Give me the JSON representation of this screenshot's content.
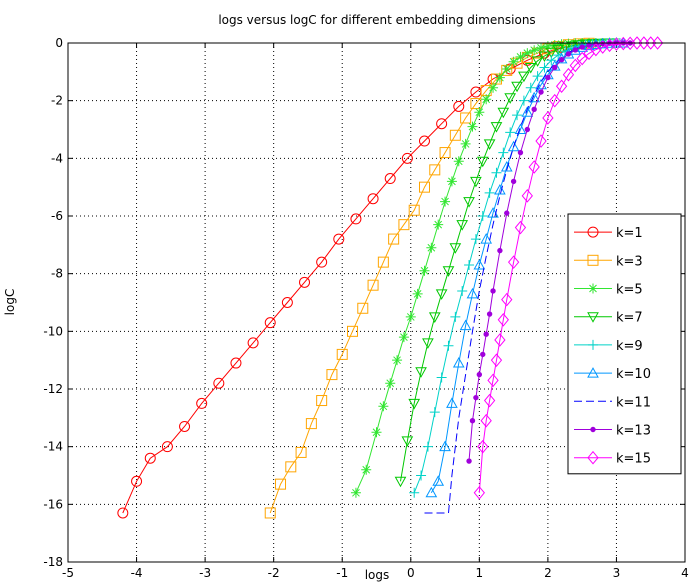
{
  "chart_data": {
    "type": "line",
    "title": "logs versus logC for different embedding dimensions",
    "xlabel": "logs",
    "ylabel": "logC",
    "xlim": [
      -5,
      4
    ],
    "ylim": [
      -18,
      0
    ],
    "xticks": [
      -5,
      -4,
      -3,
      -2,
      -1,
      0,
      1,
      2,
      3,
      4
    ],
    "yticks": [
      0,
      -2,
      -4,
      -6,
      -8,
      -10,
      -12,
      -14,
      -16,
      -18
    ],
    "grid": true,
    "legend_position": "right",
    "series": [
      {
        "name": "k=1",
        "color": "#ff0000",
        "marker": "circle",
        "dashed": false,
        "x": [
          -4.2,
          -4.0,
          -3.8,
          -3.55,
          -3.3,
          -3.05,
          -2.8,
          -2.55,
          -2.3,
          -2.05,
          -1.8,
          -1.55,
          -1.3,
          -1.05,
          -0.8,
          -0.55,
          -0.3,
          -0.05,
          0.2,
          0.45,
          0.7,
          0.95,
          1.2,
          1.45,
          1.7,
          1.95,
          2.2
        ],
        "y": [
          -16.3,
          -15.2,
          -14.4,
          -14.0,
          -13.3,
          -12.5,
          -11.8,
          -11.1,
          -10.4,
          -9.7,
          -9.0,
          -8.3,
          -7.6,
          -6.8,
          -6.1,
          -5.4,
          -4.7,
          -4.0,
          -3.4,
          -2.8,
          -2.2,
          -1.7,
          -1.25,
          -0.9,
          -0.6,
          -0.35,
          -0.15
        ]
      },
      {
        "name": "k=3",
        "color": "#ffa500",
        "marker": "square",
        "dashed": false,
        "x": [
          -2.05,
          -1.9,
          -1.75,
          -1.6,
          -1.45,
          -1.3,
          -1.15,
          -1.0,
          -0.85,
          -0.7,
          -0.55,
          -0.4,
          -0.25,
          -0.1,
          0.05,
          0.2,
          0.35,
          0.5,
          0.65,
          0.8,
          0.95,
          1.1,
          1.25,
          1.4,
          1.55,
          1.7,
          1.85,
          2.0,
          2.15,
          2.3,
          2.45,
          2.6
        ],
        "y": [
          -16.3,
          -15.3,
          -14.7,
          -14.2,
          -13.2,
          -12.4,
          -11.5,
          -10.8,
          -10.0,
          -9.2,
          -8.4,
          -7.6,
          -6.8,
          -6.3,
          -5.8,
          -5.0,
          -4.4,
          -3.8,
          -3.2,
          -2.6,
          -2.1,
          -1.65,
          -1.25,
          -0.95,
          -0.7,
          -0.5,
          -0.35,
          -0.2,
          -0.12,
          -0.06,
          -0.03,
          -0.01
        ]
      },
      {
        "name": "k=5",
        "color": "#32e632",
        "marker": "asterisk",
        "dashed": false,
        "x": [
          -0.8,
          -0.65,
          -0.5,
          -0.4,
          -0.3,
          -0.2,
          -0.1,
          0.0,
          0.1,
          0.2,
          0.3,
          0.4,
          0.5,
          0.6,
          0.7,
          0.8,
          0.9,
          1.0,
          1.1,
          1.2,
          1.3,
          1.4,
          1.5,
          1.6,
          1.7,
          1.8,
          1.9,
          2.0,
          2.1,
          2.2,
          2.3,
          2.4,
          2.5,
          2.6,
          2.7,
          2.8
        ],
        "y": [
          -15.6,
          -14.8,
          -13.5,
          -12.6,
          -11.8,
          -11.0,
          -10.2,
          -9.5,
          -8.7,
          -7.9,
          -7.1,
          -6.3,
          -5.5,
          -4.8,
          -4.1,
          -3.5,
          -2.9,
          -2.4,
          -1.95,
          -1.55,
          -1.2,
          -0.9,
          -0.65,
          -0.48,
          -0.35,
          -0.25,
          -0.17,
          -0.11,
          -0.07,
          -0.04,
          -0.02,
          -0.01,
          0,
          0,
          0,
          0
        ]
      },
      {
        "name": "k=7",
        "color": "#00c800",
        "marker": "triangle-down",
        "dashed": false,
        "x": [
          -0.15,
          -0.05,
          0.05,
          0.15,
          0.25,
          0.35,
          0.45,
          0.55,
          0.65,
          0.75,
          0.85,
          0.95,
          1.05,
          1.15,
          1.25,
          1.35,
          1.45,
          1.55,
          1.65,
          1.75,
          1.85,
          1.95,
          2.05,
          2.15,
          2.25,
          2.35,
          2.45,
          2.55,
          2.65,
          2.75,
          2.85,
          2.95
        ],
        "y": [
          -15.2,
          -13.8,
          -12.5,
          -11.4,
          -10.4,
          -9.5,
          -8.7,
          -7.9,
          -7.1,
          -6.3,
          -5.5,
          -4.8,
          -4.1,
          -3.5,
          -2.9,
          -2.4,
          -1.9,
          -1.5,
          -1.15,
          -0.85,
          -0.62,
          -0.45,
          -0.32,
          -0.22,
          -0.15,
          -0.1,
          -0.06,
          -0.03,
          -0.02,
          -0.01,
          0,
          0
        ]
      },
      {
        "name": "k=9",
        "color": "#00d2c8",
        "marker": "plus",
        "dashed": false,
        "x": [
          0.05,
          0.15,
          0.25,
          0.35,
          0.45,
          0.55,
          0.65,
          0.75,
          0.85,
          0.95,
          1.05,
          1.15,
          1.25,
          1.35,
          1.45,
          1.55,
          1.65,
          1.75,
          1.85,
          1.95,
          2.05,
          2.15,
          2.25,
          2.35,
          2.45,
          2.55,
          2.65,
          2.75,
          2.85,
          2.95,
          3.05
        ],
        "y": [
          -15.6,
          -15.0,
          -14.0,
          -12.8,
          -11.6,
          -10.5,
          -9.5,
          -8.6,
          -7.7,
          -6.8,
          -6.0,
          -5.2,
          -4.5,
          -3.8,
          -3.1,
          -2.5,
          -2.0,
          -1.55,
          -1.15,
          -0.85,
          -0.6,
          -0.42,
          -0.28,
          -0.18,
          -0.11,
          -0.06,
          -0.03,
          -0.02,
          -0.01,
          0,
          0
        ]
      },
      {
        "name": "k=10",
        "color": "#0096ff",
        "marker": "triangle-up",
        "dashed": false,
        "x": [
          0.3,
          0.4,
          0.5,
          0.6,
          0.7,
          0.8,
          0.9,
          1.0,
          1.1,
          1.2,
          1.3,
          1.4,
          1.5,
          1.6,
          1.7,
          1.8,
          1.9,
          2.0,
          2.1,
          2.2,
          2.3,
          2.4,
          2.5,
          2.6,
          2.7,
          2.8,
          2.9,
          3.0,
          3.1
        ],
        "y": [
          -15.6,
          -15.2,
          -14.0,
          -12.5,
          -11.1,
          -9.8,
          -8.7,
          -7.7,
          -6.8,
          -5.9,
          -5.1,
          -4.3,
          -3.6,
          -3.0,
          -2.4,
          -1.9,
          -1.45,
          -1.1,
          -0.8,
          -0.55,
          -0.38,
          -0.25,
          -0.15,
          -0.09,
          -0.05,
          -0.03,
          -0.01,
          0,
          0
        ]
      },
      {
        "name": "k=11",
        "color": "#0000ff",
        "marker": "none",
        "dashed": true,
        "x": [
          0.2,
          0.55,
          0.6,
          0.7,
          0.8,
          0.9,
          1.0,
          1.1,
          1.2,
          1.3,
          1.4,
          1.5,
          1.6,
          1.7,
          1.8,
          1.9,
          2.0,
          2.1,
          2.2,
          2.3,
          2.4,
          2.5,
          2.6,
          2.7,
          2.8,
          2.9,
          3.0
        ],
        "y": [
          -16.3,
          -16.3,
          -15.0,
          -13.0,
          -11.5,
          -10.0,
          -8.6,
          -7.4,
          -6.3,
          -5.3,
          -4.4,
          -3.6,
          -2.9,
          -2.3,
          -1.8,
          -1.35,
          -1.0,
          -0.72,
          -0.5,
          -0.33,
          -0.21,
          -0.13,
          -0.07,
          -0.04,
          -0.02,
          -0.01,
          0
        ]
      },
      {
        "name": "k=13",
        "color": "#a000dc",
        "marker": "dot",
        "dashed": false,
        "x": [
          0.85,
          0.9,
          0.95,
          1.0,
          1.05,
          1.1,
          1.15,
          1.2,
          1.3,
          1.4,
          1.5,
          1.6,
          1.7,
          1.8,
          1.9,
          2.0,
          2.1,
          2.2,
          2.3,
          2.4,
          2.5,
          2.6,
          2.7,
          2.8,
          2.9,
          3.0,
          3.1,
          3.2
        ],
        "y": [
          -14.5,
          -13.1,
          -12.3,
          -11.5,
          -10.8,
          -10.1,
          -9.4,
          -8.6,
          -7.2,
          -5.9,
          -4.8,
          -3.8,
          -3.0,
          -2.3,
          -1.7,
          -1.2,
          -0.85,
          -0.58,
          -0.38,
          -0.24,
          -0.14,
          -0.08,
          -0.04,
          -0.02,
          -0.01,
          0,
          0,
          0
        ]
      },
      {
        "name": "k=15",
        "color": "#ff00ff",
        "marker": "diamond",
        "dashed": false,
        "x": [
          1.0,
          1.05,
          1.1,
          1.15,
          1.2,
          1.25,
          1.3,
          1.35,
          1.4,
          1.5,
          1.6,
          1.7,
          1.8,
          1.9,
          2.0,
          2.1,
          2.2,
          2.3,
          2.4,
          2.5,
          2.6,
          2.7,
          2.8,
          2.9,
          3.0,
          3.1,
          3.2,
          3.3,
          3.4,
          3.5,
          3.6
        ],
        "y": [
          -15.6,
          -14.0,
          -13.1,
          -12.4,
          -11.7,
          -11.0,
          -10.3,
          -9.6,
          -8.9,
          -7.6,
          -6.4,
          -5.3,
          -4.3,
          -3.4,
          -2.6,
          -2.0,
          -1.5,
          -1.1,
          -0.78,
          -0.54,
          -0.36,
          -0.23,
          -0.14,
          -0.08,
          -0.04,
          -0.02,
          -0.01,
          0,
          0,
          0,
          0
        ]
      }
    ]
  }
}
